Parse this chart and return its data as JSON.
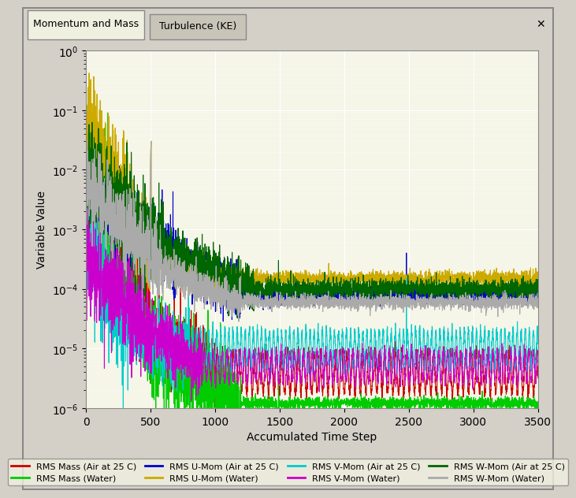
{
  "title": "Momentum and Mass",
  "tab2": "Turbulence (KE)",
  "xlabel": "Accumulated Time Step",
  "ylabel": "Variable Value",
  "xlim": [
    0,
    3500
  ],
  "ylim_log": [
    -6,
    0
  ],
  "background_color": "#f0f0e8",
  "plot_bg": "#f5f5e8",
  "grid_color": "#ffffff",
  "series": {
    "rms_mass_air": {
      "color": "#cc0000",
      "label": "RMS Mass (Air at 25 C)"
    },
    "rms_mass_water": {
      "color": "#00cc00",
      "label": "RMS Mass (Water)"
    },
    "rms_umom_air": {
      "color": "#0000cc",
      "label": "RMS U-Mom (Air at 25 C)"
    },
    "rms_umom_water": {
      "color": "#ccaa00",
      "label": "RMS U-Mom (Water)"
    },
    "rms_vmom_air": {
      "color": "#00cccc",
      "label": "RMS V-Mom (Air at 25 C)"
    },
    "rms_vmom_water": {
      "color": "#cc00cc",
      "label": "RMS V-Mom (Water)"
    },
    "rms_wmom_air": {
      "color": "#006600",
      "label": "RMS W-Mom (Air at 25 C)"
    },
    "rms_wmom_water": {
      "color": "#aaaaaa",
      "label": "RMS W-Mom (Water)"
    }
  }
}
